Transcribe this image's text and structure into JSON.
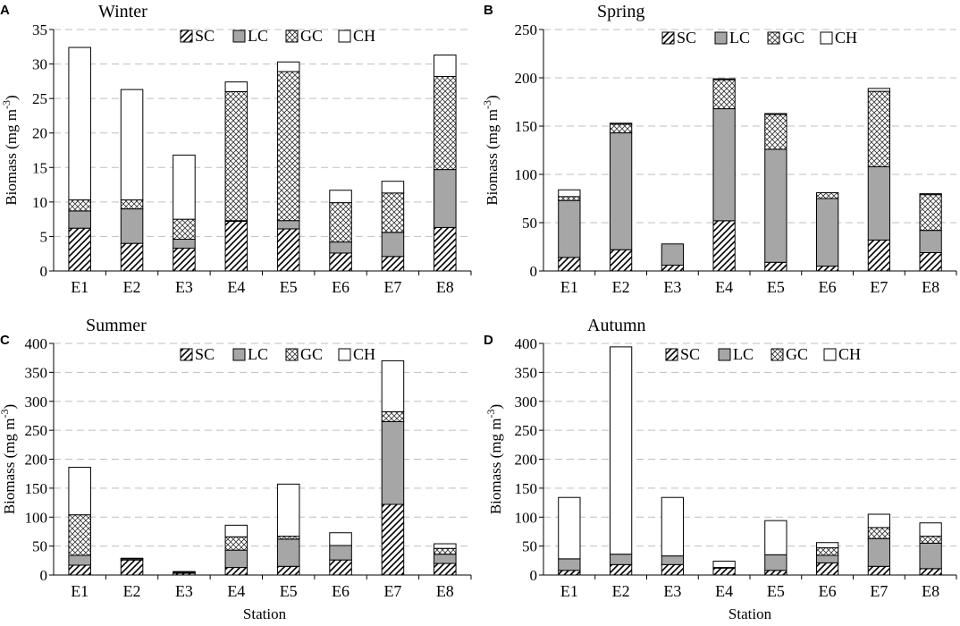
{
  "patterns": {
    "SC": "hatch",
    "LC": "solid-gray",
    "GC": "crosshatch",
    "CH": "white"
  },
  "colors": {
    "LC": "#a6a6a6",
    "stroke": "#000000",
    "grid": "#bfbfbf"
  },
  "xlabel": "Station",
  "chart_data": [
    {
      "type": "bar",
      "stacked": true,
      "letter": "A",
      "title": "Winter",
      "ylabel": "Biomass (mg m",
      "ylabel_sup": "-3",
      "ylabel_close": ")",
      "categories": [
        "E1",
        "E2",
        "E3",
        "E4",
        "E5",
        "E6",
        "E7",
        "E8"
      ],
      "ylim": [
        0,
        35
      ],
      "yticks": [
        0,
        5,
        10,
        15,
        20,
        25,
        30,
        35
      ],
      "legend": [
        "SC",
        "LC",
        "GC",
        "CH"
      ],
      "grid": true,
      "series": [
        {
          "name": "SC",
          "values": [
            6.2,
            4.0,
            3.3,
            7.2,
            6.1,
            2.6,
            2.1,
            6.3
          ]
        },
        {
          "name": "LC",
          "values": [
            2.5,
            5.0,
            1.3,
            0.1,
            1.2,
            1.6,
            3.5,
            8.4
          ]
        },
        {
          "name": "GC",
          "values": [
            1.6,
            1.3,
            2.9,
            18.7,
            21.6,
            5.7,
            5.7,
            13.5
          ]
        },
        {
          "name": "CH",
          "values": [
            22.1,
            16.0,
            9.3,
            1.4,
            1.4,
            1.8,
            1.7,
            3.1
          ]
        }
      ]
    },
    {
      "type": "bar",
      "stacked": true,
      "letter": "B",
      "title": "Spring",
      "ylabel": "Biomass (mg m",
      "ylabel_sup": "-3",
      "ylabel_close": ")",
      "categories": [
        "E1",
        "E2",
        "E3",
        "E4",
        "E5",
        "E6",
        "E7",
        "E8"
      ],
      "ylim": [
        0,
        250
      ],
      "yticks": [
        0,
        50,
        100,
        150,
        200,
        250
      ],
      "legend": [
        "SC",
        "LC",
        "GC",
        "CH"
      ],
      "grid": true,
      "series": [
        {
          "name": "SC",
          "values": [
            14,
            22,
            6,
            52,
            9,
            5,
            32,
            19
          ]
        },
        {
          "name": "LC",
          "values": [
            59,
            121,
            22,
            116,
            117,
            70,
            76,
            23
          ]
        },
        {
          "name": "GC",
          "values": [
            4,
            9,
            0,
            30,
            36,
            6,
            78,
            37
          ]
        },
        {
          "name": "CH",
          "values": [
            7,
            1,
            0,
            1,
            1,
            0,
            3,
            1
          ]
        }
      ]
    },
    {
      "type": "bar",
      "stacked": true,
      "letter": "C",
      "title": "Summer",
      "ylabel": "Biomass (mg m",
      "ylabel_sup": "-3",
      "ylabel_close": ")",
      "categories": [
        "E1",
        "E2",
        "E3",
        "E4",
        "E5",
        "E6",
        "E7",
        "E8"
      ],
      "ylim": [
        0,
        400
      ],
      "yticks": [
        0,
        50,
        100,
        150,
        200,
        250,
        300,
        350,
        400
      ],
      "legend": [
        "SC",
        "LC",
        "GC",
        "CH"
      ],
      "grid": true,
      "series": [
        {
          "name": "SC",
          "values": [
            17,
            26,
            3,
            13,
            15,
            26,
            122,
            20
          ]
        },
        {
          "name": "LC",
          "values": [
            17,
            2,
            1,
            30,
            47,
            25,
            143,
            16
          ]
        },
        {
          "name": "GC",
          "values": [
            70,
            0,
            1,
            23,
            5,
            0,
            17,
            10
          ]
        },
        {
          "name": "CH",
          "values": [
            82,
            1,
            1,
            20,
            90,
            22,
            88,
            8
          ]
        }
      ]
    },
    {
      "type": "bar",
      "stacked": true,
      "letter": "D",
      "title": "Autumn",
      "ylabel": "Biomass (mg m",
      "ylabel_sup": "-3",
      "ylabel_close": ")",
      "categories": [
        "E1",
        "E2",
        "E3",
        "E4",
        "E5",
        "E6",
        "E7",
        "E8"
      ],
      "ylim": [
        0,
        400
      ],
      "yticks": [
        0,
        50,
        100,
        150,
        200,
        250,
        300,
        350,
        400
      ],
      "legend": [
        "SC",
        "LC",
        "GC",
        "CH"
      ],
      "grid": true,
      "series": [
        {
          "name": "SC",
          "values": [
            8,
            18,
            18,
            12,
            8,
            21,
            15,
            11
          ]
        },
        {
          "name": "LC",
          "values": [
            20,
            18,
            15,
            1,
            27,
            13,
            48,
            44
          ]
        },
        {
          "name": "GC",
          "values": [
            0,
            0,
            0,
            0,
            0,
            13,
            19,
            12
          ]
        },
        {
          "name": "CH",
          "values": [
            106,
            358,
            101,
            11,
            59,
            9,
            23,
            23
          ]
        }
      ]
    }
  ]
}
